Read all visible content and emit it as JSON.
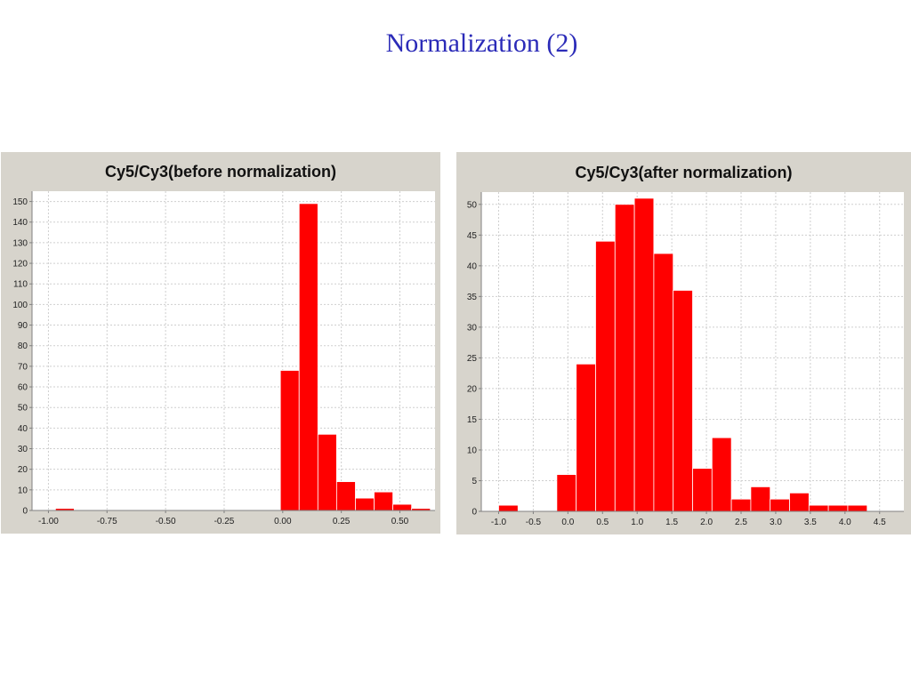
{
  "slide": {
    "title": "Normalization (2)"
  },
  "colors": {
    "bar": "#ff0000",
    "bar_edge": "#ffffff",
    "panel_bg": "#d7d4cc",
    "plot_bg": "#ffffff",
    "grid": "#cfcfcf",
    "title_color": "#2b2bb8"
  },
  "chart_data": [
    {
      "type": "bar",
      "title": "Cy5/Cy3(before normalization)",
      "xlabel": "",
      "ylabel": "",
      "xlim": [
        -1.07,
        0.65
      ],
      "ylim": [
        0,
        155
      ],
      "x_ticks": [
        -1.0,
        -0.75,
        -0.5,
        -0.25,
        0.0,
        0.25,
        0.5
      ],
      "x_tick_labels": [
        "-1.00",
        "-0.75",
        "-0.50",
        "-0.25",
        "0.00",
        "0.25",
        "0.50"
      ],
      "y_ticks": [
        0,
        10,
        20,
        30,
        40,
        50,
        60,
        70,
        80,
        90,
        100,
        110,
        120,
        130,
        140,
        150
      ],
      "y_tick_labels": [
        "0",
        "10",
        "20",
        "30",
        "40",
        "50",
        "60",
        "70",
        "80",
        "90",
        "100",
        "110",
        "120",
        "130",
        "140",
        "150"
      ],
      "grid": true,
      "bin_edges": [
        -0.97,
        -0.89,
        -0.81,
        -0.73,
        -0.65,
        -0.57,
        -0.49,
        -0.41,
        -0.33,
        -0.25,
        -0.17,
        -0.09,
        -0.01,
        0.07,
        0.15,
        0.23,
        0.31,
        0.39,
        0.47,
        0.55,
        0.63
      ],
      "values": [
        1,
        0,
        0,
        0,
        0,
        0,
        0,
        0,
        0,
        0,
        0,
        0,
        68,
        149,
        37,
        14,
        6,
        9,
        3,
        1
      ]
    },
    {
      "type": "bar",
      "title": "Cy5/Cy3(after normalization)",
      "xlabel": "",
      "ylabel": "",
      "xlim": [
        -1.25,
        4.85
      ],
      "ylim": [
        0,
        52
      ],
      "x_ticks": [
        -1.0,
        -0.5,
        0.0,
        0.5,
        1.0,
        1.5,
        2.0,
        2.5,
        3.0,
        3.5,
        4.0,
        4.5
      ],
      "x_tick_labels": [
        "-1.0",
        "-0.5",
        "0.0",
        "0.5",
        "1.0",
        "1.5",
        "2.0",
        "2.5",
        "3.0",
        "3.5",
        "4.0",
        "4.5"
      ],
      "y_ticks": [
        0,
        5,
        10,
        15,
        20,
        25,
        30,
        35,
        40,
        45,
        50
      ],
      "y_tick_labels": [
        "0",
        "5",
        "10",
        "15",
        "20",
        "25",
        "30",
        "35",
        "40",
        "45",
        "50"
      ],
      "grid": true,
      "bin_edges": [
        -1.0,
        -0.72,
        -0.44,
        -0.16,
        0.12,
        0.4,
        0.68,
        0.96,
        1.24,
        1.52,
        1.8,
        2.08,
        2.36,
        2.64,
        2.92,
        3.2,
        3.48,
        3.76,
        4.04,
        4.32
      ],
      "values": [
        1,
        0,
        0,
        6,
        24,
        44,
        50,
        51,
        42,
        36,
        7,
        12,
        2,
        4,
        2,
        3,
        1,
        1,
        1
      ]
    }
  ]
}
